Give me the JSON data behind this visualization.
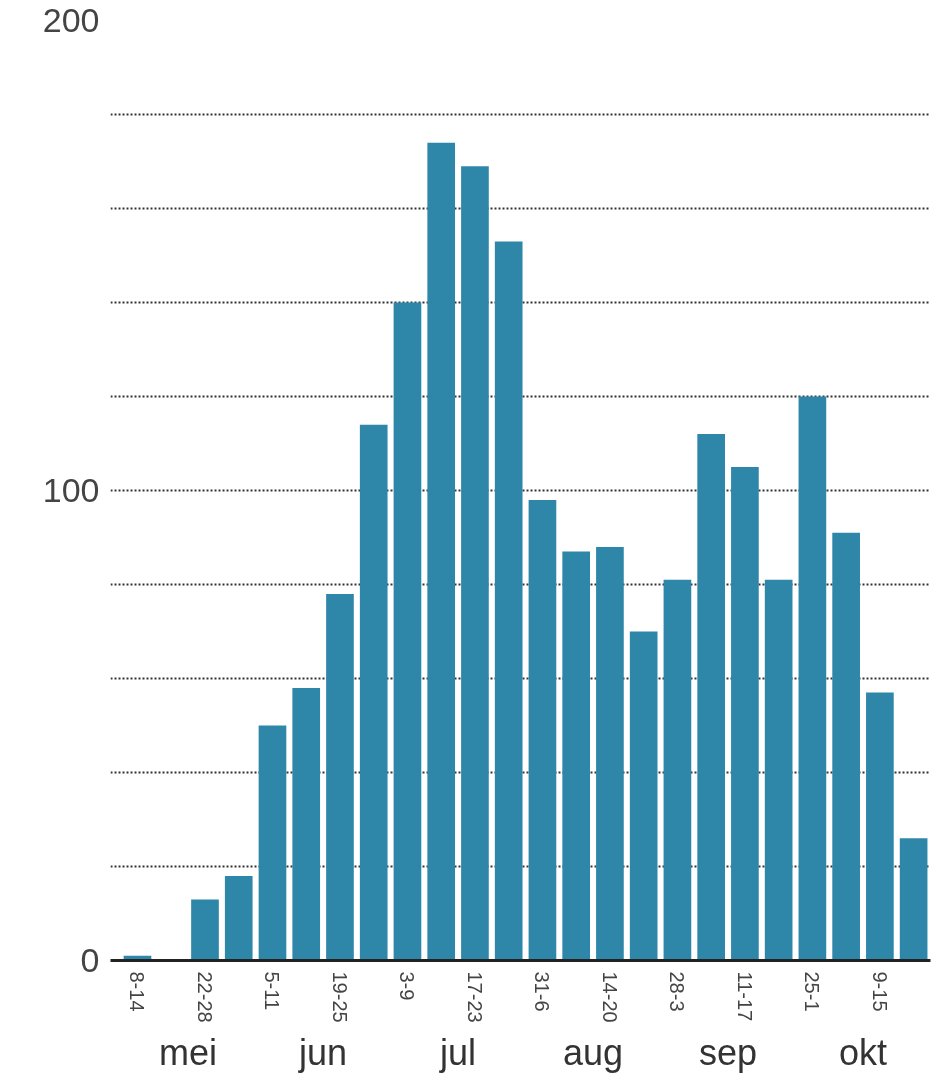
{
  "chart_data": {
    "type": "bar",
    "categories": [
      "8-14",
      null,
      "22-28",
      null,
      "5-11",
      null,
      "19-25",
      null,
      "3-9",
      null,
      "17-23",
      null,
      "31-6",
      null,
      "14-20",
      null,
      "28-3",
      null,
      "11-17",
      null,
      "25-1",
      null,
      "9-15",
      null
    ],
    "values": [
      1,
      0,
      13,
      18,
      50,
      58,
      78,
      114,
      140,
      174,
      169,
      153,
      98,
      87,
      88,
      70,
      81,
      112,
      105,
      81,
      120,
      91,
      57,
      26
    ],
    "color": "#2e86a8",
    "ylim": [
      0,
      200
    ],
    "yticks": [
      0,
      {
        "value": 20,
        "label": null
      },
      {
        "value": 40,
        "label": null
      },
      {
        "value": 60,
        "label": null
      },
      {
        "value": 80,
        "label": null
      },
      100,
      {
        "value": 120,
        "label": null
      },
      {
        "value": 140,
        "label": null
      },
      {
        "value": 160,
        "label": null
      },
      {
        "value": 180,
        "label": null
      },
      200
    ],
    "grid": "y",
    "annotations": [
      "mei",
      "jun",
      "jul",
      "aug",
      "sep",
      "okt"
    ]
  }
}
